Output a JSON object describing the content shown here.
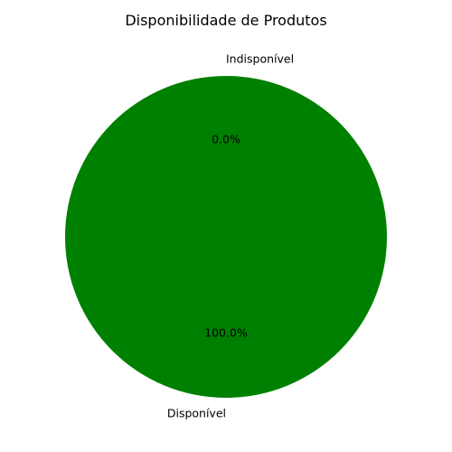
{
  "chart_data": {
    "type": "pie",
    "title": "Disponibilidade de Produtos",
    "categories": [
      "Disponível",
      "Indisponível"
    ],
    "values": [
      100.0,
      0.0
    ],
    "percent_labels": [
      "100.0%",
      "0.0%"
    ],
    "colors": [
      "#008000",
      "#ff0000"
    ],
    "legend": "none"
  }
}
